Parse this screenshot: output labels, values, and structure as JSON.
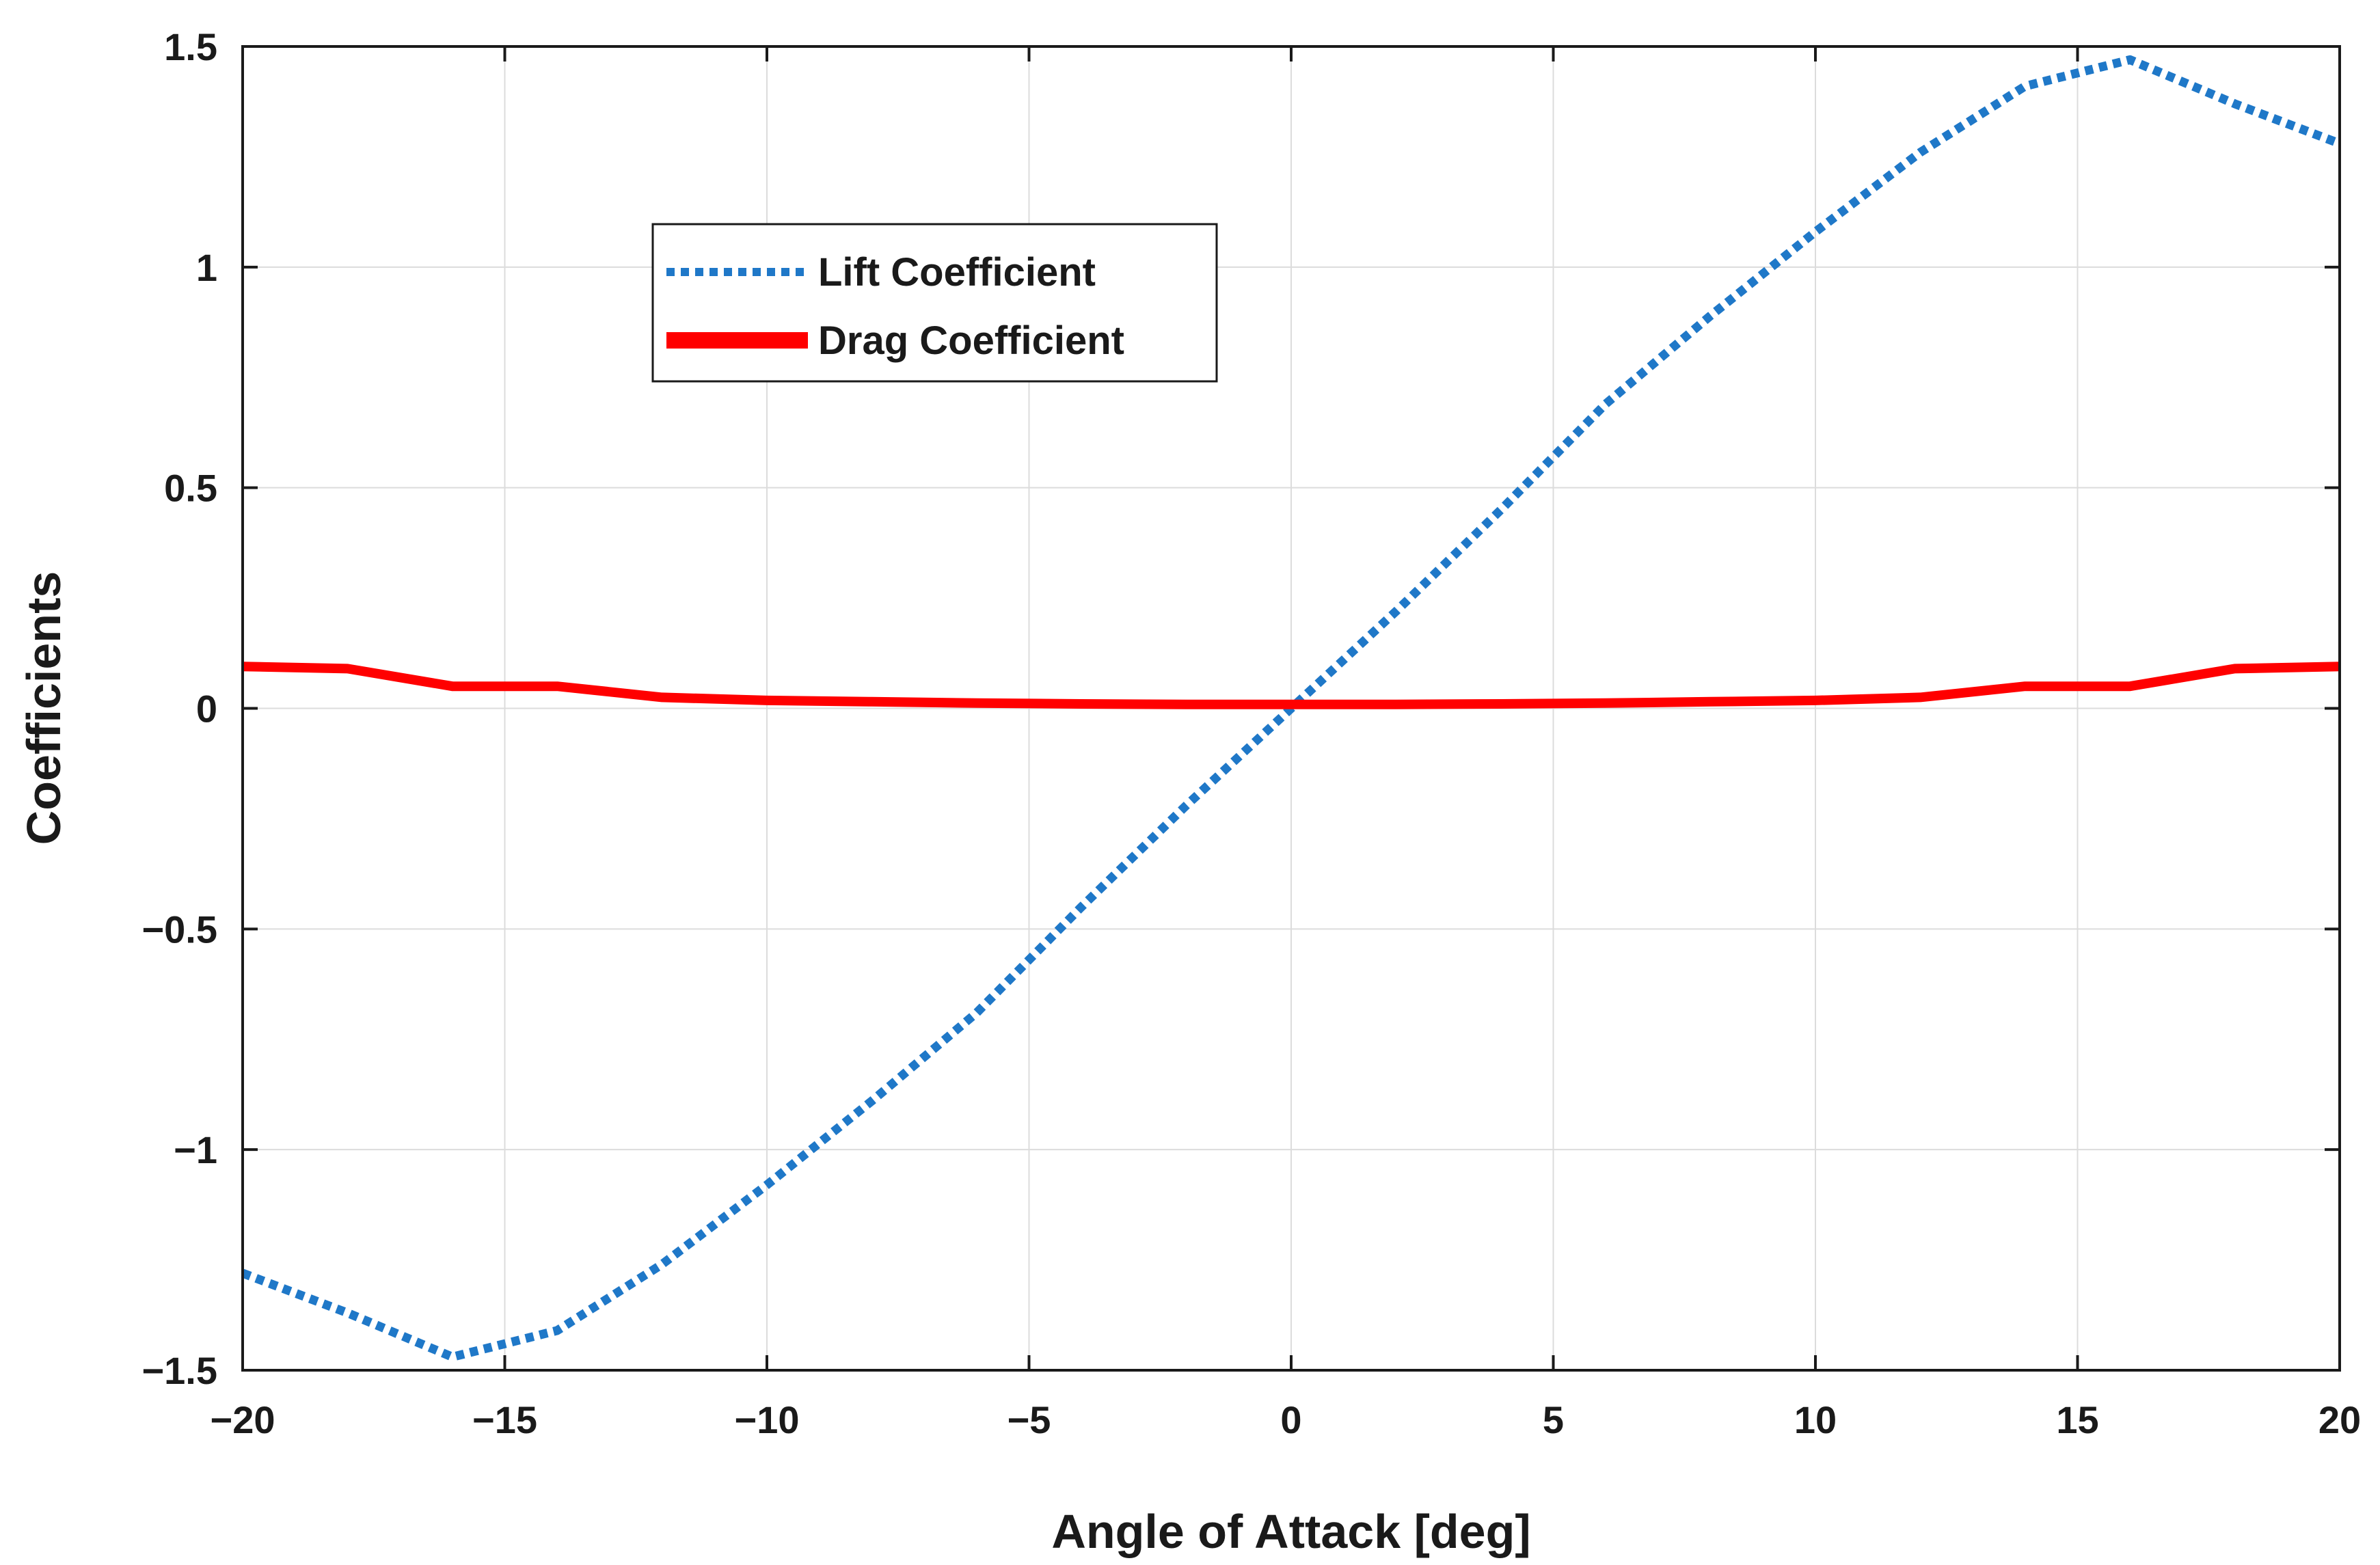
{
  "chart_data": {
    "type": "line",
    "title": "",
    "xlabel": "Angle of Attack [deg]",
    "ylabel": "Coefficients",
    "xlim": [
      -20,
      20
    ],
    "ylim": [
      -1.5,
      1.5
    ],
    "xticks": [
      -20,
      -15,
      -10,
      -5,
      0,
      5,
      10,
      15,
      20
    ],
    "xtick_labels": [
      "−20",
      "−15",
      "−10",
      "−5",
      "0",
      "5",
      "10",
      "15",
      "20"
    ],
    "yticks": [
      -1.5,
      -1,
      -0.5,
      0,
      0.5,
      1,
      1.5
    ],
    "ytick_labels": [
      "−1.5",
      "−1",
      "−0.5",
      "0",
      "0.5",
      "1",
      "1.5"
    ],
    "grid": true,
    "legend_position": "upper-left",
    "series": [
      {
        "name": "Lift Coefficient",
        "color": "#1f78c8",
        "style": "dotted",
        "x": [
          -20,
          -18,
          -16,
          -14,
          -12,
          -10,
          -8,
          -6,
          -4,
          -2,
          0,
          2,
          4,
          6,
          8,
          10,
          12,
          14,
          16,
          18,
          20
        ],
        "y": [
          -1.28,
          -1.37,
          -1.47,
          -1.41,
          -1.26,
          -1.08,
          -0.89,
          -0.69,
          -0.45,
          -0.22,
          0.0,
          0.22,
          0.45,
          0.69,
          0.89,
          1.08,
          1.26,
          1.41,
          1.47,
          1.37,
          1.28
        ]
      },
      {
        "name": "Drag Coefficient",
        "color": "#ff0000",
        "style": "solid",
        "x": [
          -20,
          -18,
          -16,
          -14,
          -12,
          -10,
          -8,
          -6,
          -4,
          -2,
          0,
          2,
          4,
          6,
          8,
          10,
          12,
          14,
          16,
          18,
          20
        ],
        "y": [
          0.095,
          0.09,
          0.05,
          0.05,
          0.025,
          0.018,
          0.015,
          0.012,
          0.01,
          0.009,
          0.009,
          0.009,
          0.01,
          0.012,
          0.015,
          0.018,
          0.025,
          0.05,
          0.05,
          0.09,
          0.095
        ]
      }
    ]
  }
}
